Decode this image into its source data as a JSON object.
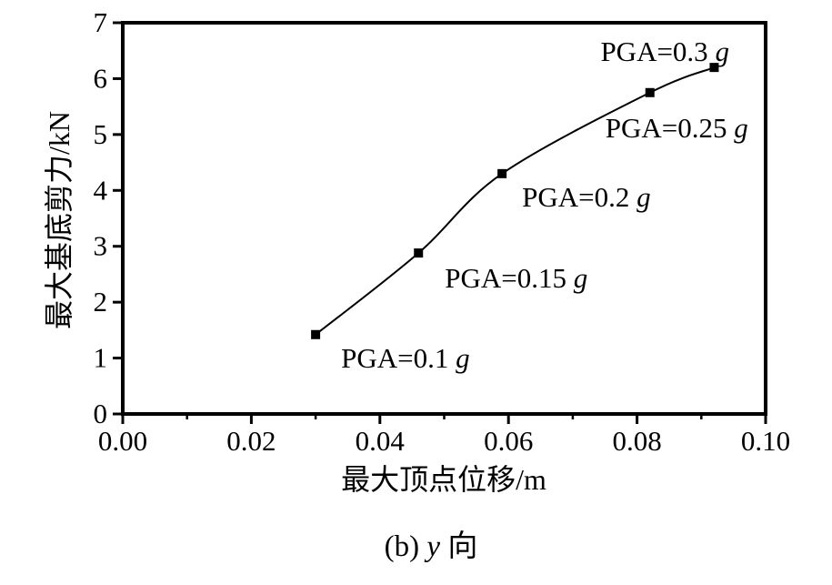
{
  "chart_data": {
    "type": "line",
    "title": "",
    "caption": "(b) y 向",
    "caption_parts": {
      "prefix": "(b) ",
      "italic": "y",
      "suffix": " 向"
    },
    "xlabel": "最大顶点位移/m",
    "ylabel": "最大基底剪力/kN",
    "xlim": [
      0.0,
      0.1
    ],
    "ylim": [
      0,
      7
    ],
    "x_major_ticks": [
      0.0,
      0.02,
      0.04,
      0.06,
      0.08,
      0.1
    ],
    "x_tick_labels": [
      "0.00",
      "0.02",
      "0.04",
      "0.06",
      "0.08",
      "0.10"
    ],
    "x_minor_ticks": [
      0.01,
      0.03,
      0.05,
      0.07,
      0.09
    ],
    "y_ticks": [
      0,
      1,
      2,
      3,
      4,
      5,
      6,
      7
    ],
    "y_tick_labels": [
      "0",
      "1",
      "2",
      "3",
      "4",
      "5",
      "6",
      "7"
    ],
    "grid": false,
    "legend": "none",
    "background_color": "#ffffff",
    "axis_color": "#000000",
    "series": [
      {
        "name": "max-base-shear-vs-max-roof-displacement",
        "marker": "square",
        "color": "#000000",
        "points": [
          {
            "x": 0.03,
            "y": 1.42,
            "label": "PGA=0.1 g",
            "label_offset": [
              28,
              12
            ]
          },
          {
            "x": 0.046,
            "y": 2.88,
            "label": "PGA=0.15 g",
            "label_offset": [
              29,
              14
            ]
          },
          {
            "x": 0.059,
            "y": 4.3,
            "label": "PGA=0.2 g",
            "label_offset": [
              22,
              12
            ]
          },
          {
            "x": 0.082,
            "y": 5.75,
            "label": "PGA=0.25 g",
            "label_offset": [
              -49,
              25
            ]
          },
          {
            "x": 0.092,
            "y": 6.2,
            "label": "PGA=0.3 g",
            "label_offset": [
              -125,
              -31
            ]
          }
        ]
      }
    ]
  }
}
